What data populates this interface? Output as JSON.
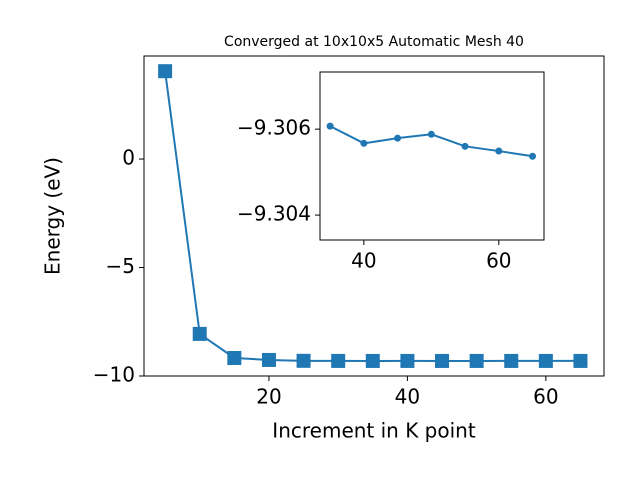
{
  "chart_data": [
    {
      "type": "line",
      "title": "Converged at 10x10x5 Automatic Mesh 40",
      "xlabel": "Increment in K point",
      "ylabel": "Energy (eV)",
      "x": [
        5,
        10,
        15,
        20,
        25,
        30,
        35,
        40,
        45,
        50,
        55,
        60,
        65
      ],
      "series": [
        {
          "color": "#1f77b4",
          "marker": "square",
          "values": [
            4.05,
            -8.06,
            -9.17,
            -9.26,
            -9.3,
            -9.305,
            -9.30607,
            -9.30567,
            -9.30579,
            -9.30588,
            -9.3056,
            -9.30549,
            -9.30537
          ]
        }
      ],
      "xlim": [
        1.95,
        68.4
      ],
      "ylim": [
        -10,
        4.75
      ],
      "xticks": [
        20,
        40,
        60
      ],
      "yticks": [
        {
          "value": -10,
          "label": "−10"
        },
        {
          "value": -5,
          "label": "−5"
        },
        0
      ]
    },
    {
      "type": "line",
      "x": [
        35,
        40,
        45,
        50,
        55,
        60,
        65
      ],
      "series": [
        {
          "color": "#1f77b4",
          "marker": "circle",
          "values": [
            -9.30607,
            -9.30567,
            -9.30579,
            -9.30588,
            -9.3056,
            -9.30549,
            -9.30537
          ]
        }
      ],
      "xlim": [
        33.5,
        66.7
      ],
      "ylim": [
        -9.30342,
        -9.30733
      ],
      "xticks": [
        40,
        60
      ],
      "yticks": [
        {
          "value": -9.306,
          "label": "−9.306"
        },
        {
          "value": -9.304,
          "label": "−9.304"
        }
      ]
    }
  ]
}
